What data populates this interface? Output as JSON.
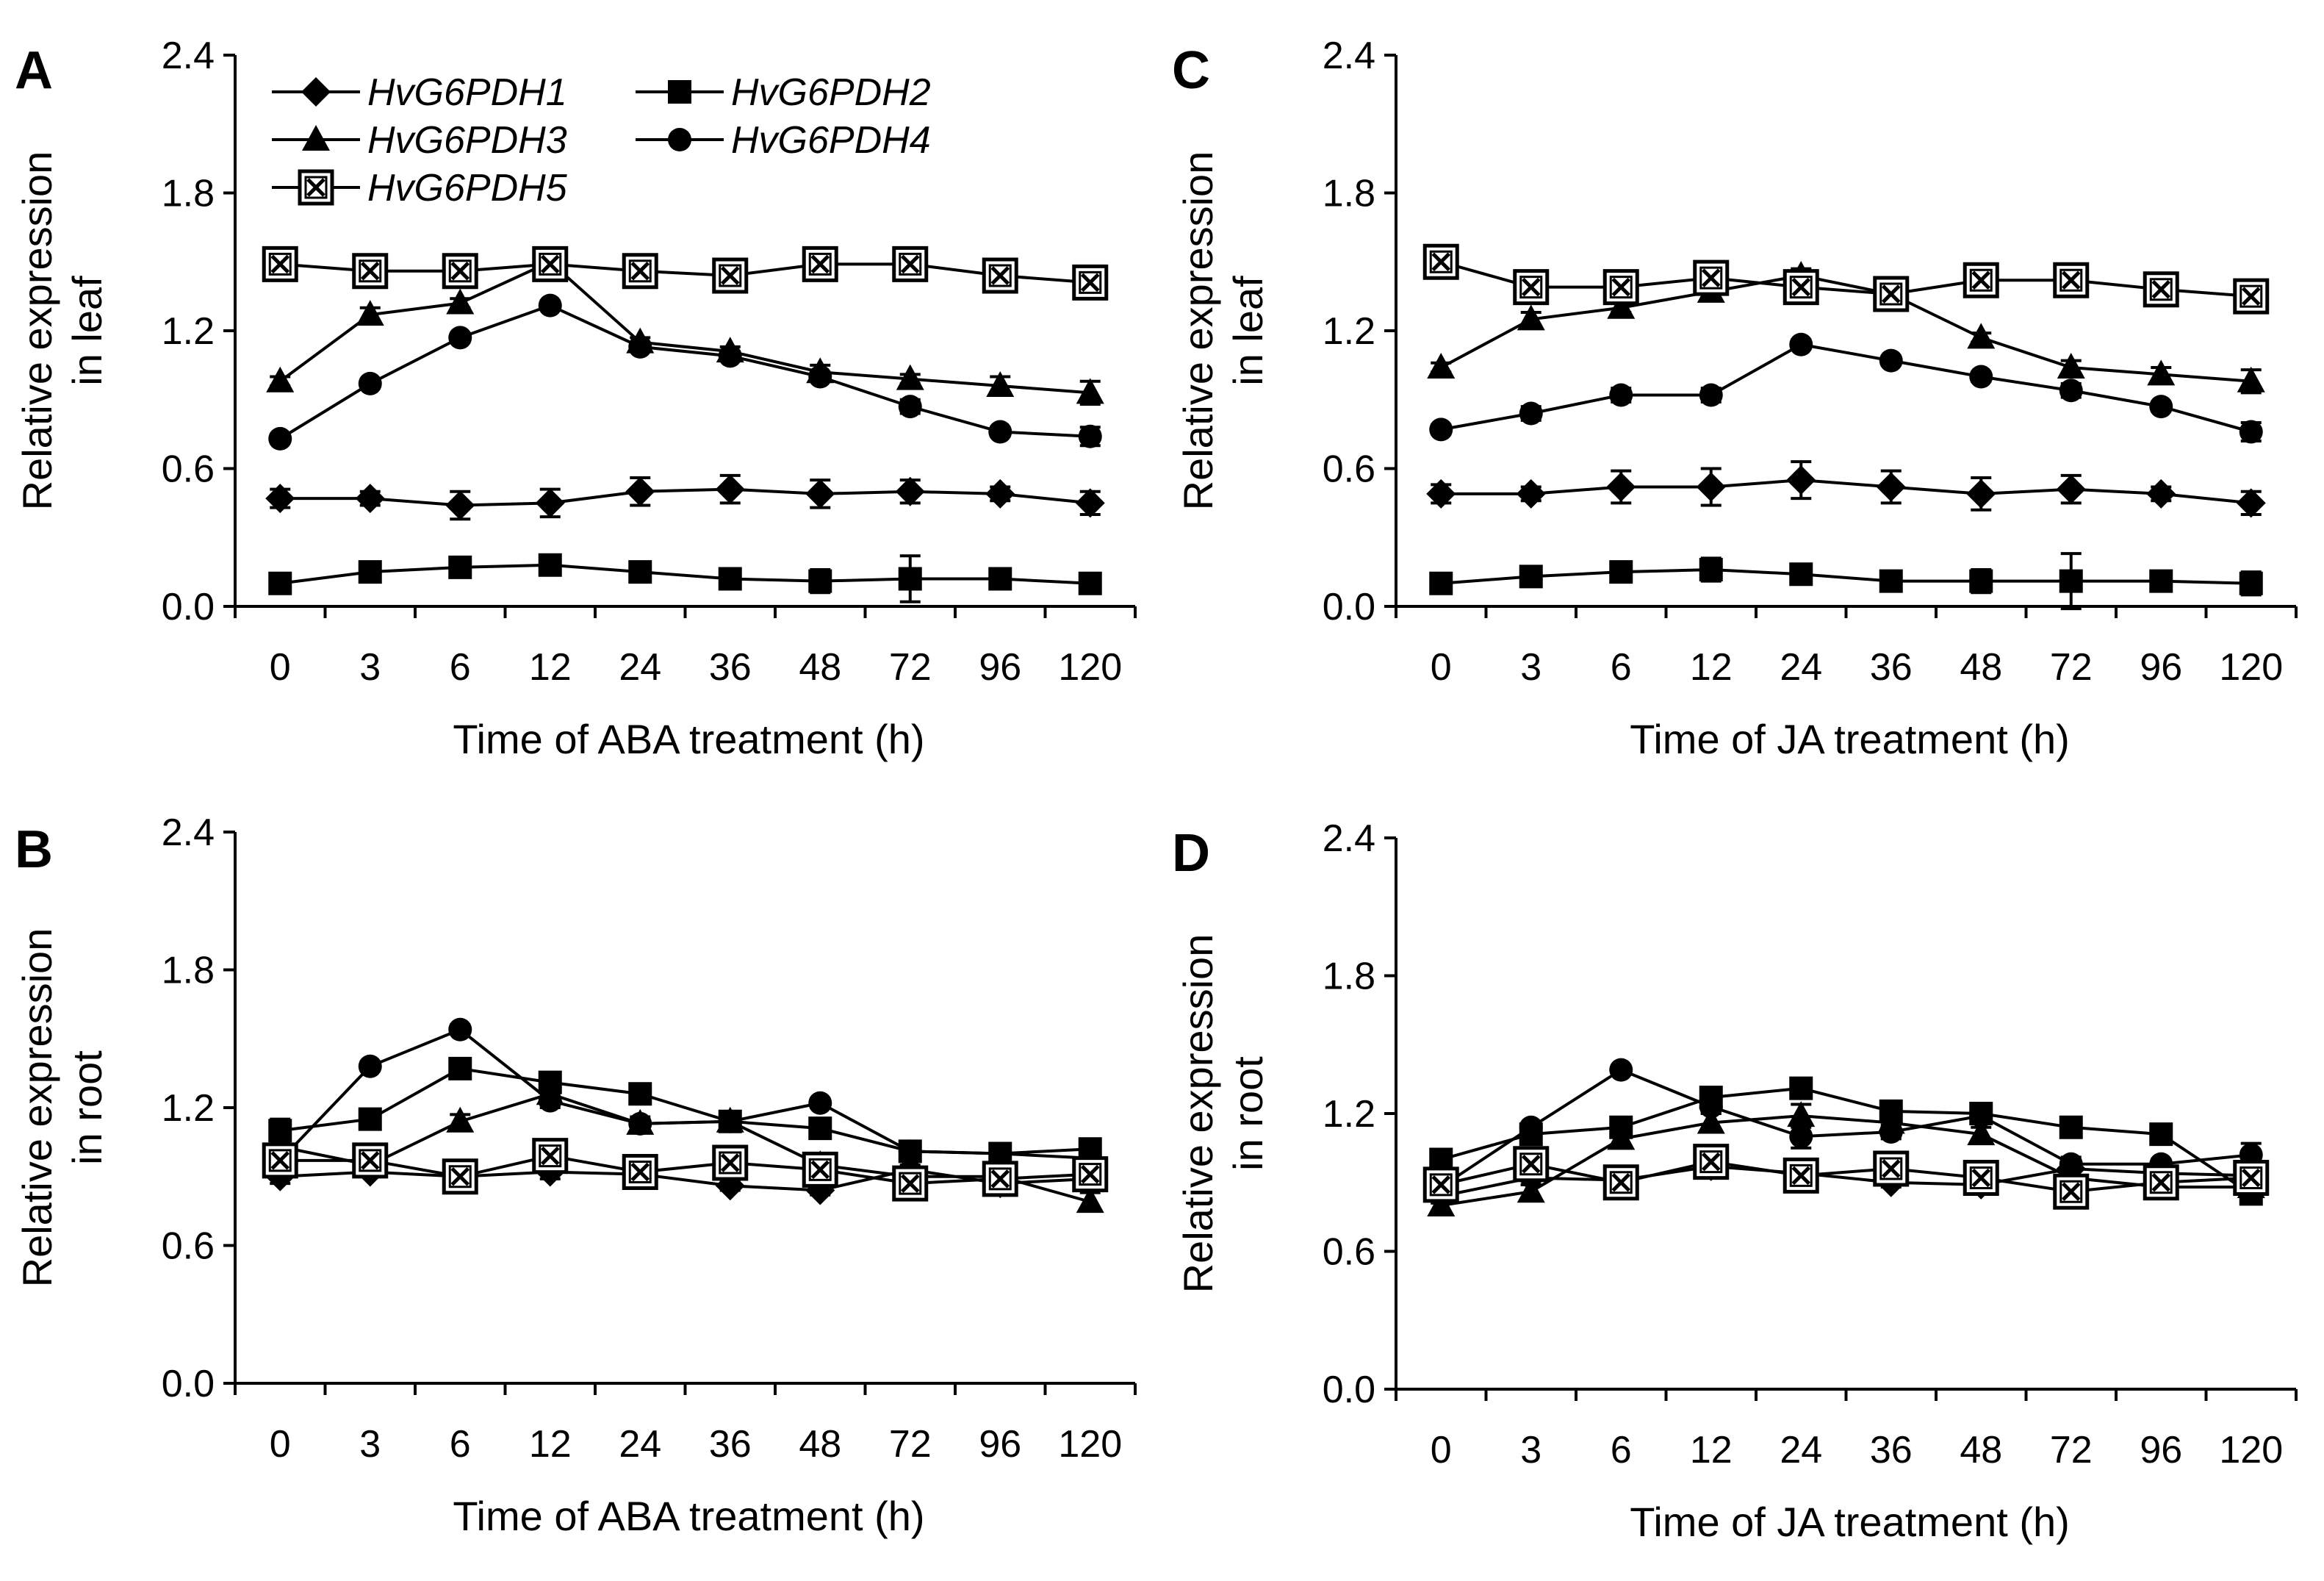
{
  "legend": [
    "HvG6PDH1",
    "HvG6PDH2",
    "HvG6PDH3",
    "HvG6PDH4",
    "HvG6PDH5"
  ],
  "chart_data": [
    {
      "panel": "A",
      "type": "line",
      "xlabel": "Time of ABA treatment (h)",
      "ylabel": [
        "Relative expression",
        "in leaf"
      ],
      "ylim": [
        0.0,
        2.4
      ],
      "yticks": [
        "0.0",
        "0.6",
        "1.2",
        "1.8",
        "2.4"
      ],
      "categories": [
        "0",
        "3",
        "6",
        "12",
        "24",
        "36",
        "48",
        "72",
        "96",
        "120"
      ],
      "series": [
        {
          "name": "HvG6PDH1",
          "marker": "diamond",
          "values": [
            0.47,
            0.47,
            0.44,
            0.45,
            0.5,
            0.51,
            0.49,
            0.5,
            0.49,
            0.45
          ],
          "errors": [
            0.04,
            0.03,
            0.06,
            0.06,
            0.06,
            0.06,
            0.06,
            0.05,
            0.03,
            0.05
          ]
        },
        {
          "name": "HvG6PDH2",
          "marker": "square",
          "values": [
            0.1,
            0.15,
            0.17,
            0.18,
            0.15,
            0.12,
            0.11,
            0.12,
            0.12,
            0.1
          ],
          "errors": [
            0.02,
            0.03,
            0.03,
            0.04,
            0.03,
            0.04,
            0.05,
            0.1,
            0.04,
            0.04
          ]
        },
        {
          "name": "HvG6PDH3",
          "marker": "triangle",
          "values": [
            0.98,
            1.27,
            1.32,
            1.5,
            1.15,
            1.11,
            1.02,
            0.99,
            0.96,
            0.93
          ],
          "errors": [
            0.02,
            0.03,
            0.02,
            0.04,
            0.02,
            0.02,
            0.03,
            0.02,
            0.04,
            0.05
          ]
        },
        {
          "name": "HvG6PDH4",
          "marker": "circle",
          "values": [
            0.73,
            0.97,
            1.17,
            1.31,
            1.13,
            1.09,
            1.0,
            0.87,
            0.76,
            0.74
          ],
          "errors": [
            0.02,
            0.02,
            0.02,
            0.02,
            0.02,
            0.02,
            0.02,
            0.03,
            0.02,
            0.04
          ]
        },
        {
          "name": "HvG6PDH5",
          "marker": "cross-square",
          "values": [
            1.49,
            1.46,
            1.46,
            1.49,
            1.46,
            1.44,
            1.49,
            1.49,
            1.44,
            1.41
          ],
          "errors": [
            0.02,
            0.02,
            0.02,
            0.02,
            0.02,
            0.02,
            0.02,
            0.02,
            0.02,
            0.02
          ]
        }
      ]
    },
    {
      "panel": "B",
      "type": "line",
      "xlabel": "Time of ABA treatment (h)",
      "ylabel": [
        "Relative expression",
        "in root"
      ],
      "ylim": [
        0.0,
        2.4
      ],
      "yticks": [
        "0.0",
        "0.6",
        "1.2",
        "1.8",
        "2.4"
      ],
      "categories": [
        "0",
        "3",
        "6",
        "12",
        "24",
        "36",
        "48",
        "72",
        "96",
        "120"
      ],
      "series": [
        {
          "name": "HvG6PDH1",
          "marker": "diamond",
          "values": [
            0.9,
            0.92,
            0.9,
            0.92,
            0.91,
            0.86,
            0.84,
            0.93,
            0.87,
            0.89
          ],
          "errors": [
            0.03,
            0.02,
            0.02,
            0.03,
            0.02,
            0.02,
            0.02,
            0.02,
            0.03,
            0.03
          ]
        },
        {
          "name": "HvG6PDH2",
          "marker": "square",
          "values": [
            1.1,
            1.15,
            1.37,
            1.31,
            1.26,
            1.14,
            1.11,
            1.01,
            1.0,
            1.02
          ],
          "errors": [
            0.05,
            0.03,
            0.03,
            0.04,
            0.03,
            0.03,
            0.03,
            0.03,
            0.03,
            0.04
          ]
        },
        {
          "name": "HvG6PDH3",
          "marker": "triangle",
          "values": [
            1.03,
            0.95,
            1.14,
            1.26,
            1.13,
            1.14,
            0.95,
            0.9,
            0.9,
            0.79
          ],
          "errors": [
            0.03,
            0.02,
            0.03,
            0.04,
            0.03,
            0.02,
            0.03,
            0.03,
            0.03,
            0.04
          ]
        },
        {
          "name": "HvG6PDH4",
          "marker": "circle",
          "values": [
            0.97,
            1.38,
            1.54,
            1.23,
            1.13,
            1.14,
            1.22,
            1.01,
            1.0,
            0.98
          ],
          "errors": [
            0.03,
            0.02,
            0.02,
            0.03,
            0.02,
            0.02,
            0.02,
            0.03,
            0.02,
            0.03
          ]
        },
        {
          "name": "HvG6PDH5",
          "marker": "cross-square",
          "values": [
            0.97,
            0.97,
            0.9,
            0.99,
            0.92,
            0.96,
            0.93,
            0.87,
            0.89,
            0.91
          ],
          "errors": [
            0.02,
            0.02,
            0.02,
            0.02,
            0.02,
            0.02,
            0.02,
            0.02,
            0.02,
            0.02
          ]
        }
      ]
    },
    {
      "panel": "C",
      "type": "line",
      "xlabel": "Time of JA treatment (h)",
      "ylabel": [
        "Relative expression",
        "in leaf"
      ],
      "ylim": [
        0.0,
        2.4
      ],
      "yticks": [
        "0.0",
        "0.6",
        "1.2",
        "1.8",
        "2.4"
      ],
      "categories": [
        "0",
        "3",
        "6",
        "12",
        "24",
        "36",
        "48",
        "72",
        "96",
        "120"
      ],
      "series": [
        {
          "name": "HvG6PDH1",
          "marker": "diamond",
          "values": [
            0.49,
            0.49,
            0.52,
            0.52,
            0.55,
            0.52,
            0.49,
            0.51,
            0.49,
            0.45
          ],
          "errors": [
            0.04,
            0.03,
            0.07,
            0.08,
            0.08,
            0.07,
            0.07,
            0.06,
            0.03,
            0.05
          ]
        },
        {
          "name": "HvG6PDH2",
          "marker": "square",
          "values": [
            0.1,
            0.13,
            0.15,
            0.16,
            0.14,
            0.11,
            0.11,
            0.11,
            0.11,
            0.1
          ],
          "errors": [
            0.02,
            0.03,
            0.03,
            0.05,
            0.03,
            0.03,
            0.05,
            0.12,
            0.03,
            0.05
          ]
        },
        {
          "name": "HvG6PDH3",
          "marker": "triangle",
          "values": [
            1.04,
            1.25,
            1.3,
            1.37,
            1.44,
            1.36,
            1.17,
            1.04,
            1.01,
            0.98
          ],
          "errors": [
            0.02,
            0.03,
            0.02,
            0.03,
            0.03,
            0.02,
            0.02,
            0.03,
            0.03,
            0.05
          ]
        },
        {
          "name": "HvG6PDH4",
          "marker": "circle",
          "values": [
            0.77,
            0.84,
            0.92,
            0.92,
            1.14,
            1.07,
            1.0,
            0.94,
            0.87,
            0.76
          ],
          "errors": [
            0.02,
            0.03,
            0.03,
            0.03,
            0.02,
            0.02,
            0.02,
            0.03,
            0.02,
            0.04
          ]
        },
        {
          "name": "HvG6PDH5",
          "marker": "cross-square",
          "values": [
            1.5,
            1.39,
            1.39,
            1.43,
            1.39,
            1.36,
            1.42,
            1.42,
            1.38,
            1.35
          ],
          "errors": [
            0.02,
            0.02,
            0.02,
            0.02,
            0.02,
            0.02,
            0.02,
            0.02,
            0.02,
            0.02
          ]
        }
      ]
    },
    {
      "panel": "D",
      "type": "line",
      "xlabel": "Time of JA treatment (h)",
      "ylabel": [
        "Relative expression",
        "in root"
      ],
      "ylim": [
        0.0,
        2.4
      ],
      "yticks": [
        "0.0",
        "0.6",
        "1.2",
        "1.8",
        "2.4"
      ],
      "categories": [
        "0",
        "3",
        "6",
        "12",
        "24",
        "36",
        "48",
        "72",
        "96",
        "120"
      ],
      "series": [
        {
          "name": "HvG6PDH1",
          "marker": "diamond",
          "values": [
            0.84,
            0.92,
            0.91,
            0.97,
            0.94,
            0.9,
            0.89,
            0.96,
            0.94,
            0.93
          ],
          "errors": [
            0.03,
            0.03,
            0.02,
            0.03,
            0.02,
            0.02,
            0.02,
            0.03,
            0.02,
            0.03
          ]
        },
        {
          "name": "HvG6PDH2",
          "marker": "square",
          "values": [
            1.0,
            1.11,
            1.14,
            1.27,
            1.31,
            1.21,
            1.2,
            1.14,
            1.11,
            0.85
          ],
          "errors": [
            0.03,
            0.02,
            0.03,
            0.04,
            0.03,
            0.03,
            0.03,
            0.03,
            0.03,
            0.03
          ]
        },
        {
          "name": "HvG6PDH3",
          "marker": "triangle",
          "values": [
            0.8,
            0.86,
            1.09,
            1.16,
            1.19,
            1.16,
            1.11,
            0.92,
            0.88,
            0.88
          ],
          "errors": [
            0.03,
            0.03,
            0.03,
            0.04,
            0.05,
            0.03,
            0.03,
            0.03,
            0.03,
            0.04
          ]
        },
        {
          "name": "HvG6PDH4",
          "marker": "circle",
          "values": [
            0.88,
            1.14,
            1.39,
            1.23,
            1.1,
            1.12,
            1.19,
            0.98,
            0.98,
            1.02
          ],
          "errors": [
            0.03,
            0.02,
            0.02,
            0.03,
            0.05,
            0.03,
            0.02,
            0.03,
            0.02,
            0.05
          ]
        },
        {
          "name": "HvG6PDH5",
          "marker": "cross-square",
          "values": [
            0.89,
            0.98,
            0.9,
            0.99,
            0.93,
            0.96,
            0.92,
            0.86,
            0.9,
            0.92
          ],
          "errors": [
            0.02,
            0.02,
            0.02,
            0.02,
            0.02,
            0.02,
            0.02,
            0.02,
            0.02,
            0.02
          ]
        }
      ]
    }
  ]
}
